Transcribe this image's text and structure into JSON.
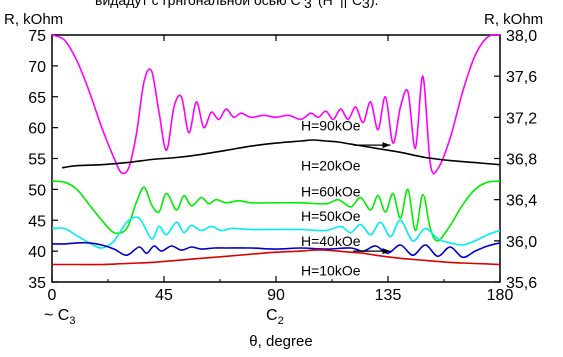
{
  "caption_fragment": "видадут с грнгональной осью С",
  "caption_subscript": "3",
  "caption_tail": "(H",
  "caption_tail2": "||",
  "caption_tail3": "C",
  "caption_tail3_sub": "3",
  "caption_tail4": ").",
  "chart_data": {
    "type": "line",
    "title": "",
    "xlabel": "θ, degree",
    "ylabel_left": "R, kOhm",
    "ylabel_right": "R, kOhm",
    "xlim": [
      0,
      180
    ],
    "ylim_left": [
      35,
      75
    ],
    "ylim_right": [
      35.6,
      38.0
    ],
    "x_ticks": [
      0,
      45,
      90,
      135,
      180
    ],
    "x_tick_labels": [
      "0",
      "45",
      "90",
      "135",
      "180"
    ],
    "y_ticks_left": [
      35,
      40,
      45,
      50,
      55,
      60,
      65,
      70,
      75
    ],
    "y_ticks_right": [
      35.6,
      36.0,
      36.4,
      36.8,
      37.2,
      37.6,
      38.0
    ],
    "y_tick_labels_right": [
      "35,6",
      "36,0",
      "36,4",
      "36,8",
      "37,2",
      "37,6",
      "38,0"
    ],
    "x_annotations": [
      {
        "x": 0,
        "text": "~ C",
        "sub": "3"
      },
      {
        "x": 90,
        "text": "C",
        "sub": "2"
      }
    ],
    "series": [
      {
        "name": "H=90kOe",
        "axis": "right",
        "color": "#ff00ff",
        "x": [
          0,
          5,
          10,
          15,
          20,
          25,
          28,
          31,
          34,
          37,
          40,
          43,
          46,
          49,
          52,
          55,
          58,
          61,
          64,
          67,
          70,
          73,
          76,
          80,
          85,
          90,
          95,
          100,
          104,
          107,
          110,
          113,
          116,
          119,
          122,
          125,
          128,
          131,
          134,
          137,
          140,
          143,
          146,
          149,
          152,
          155,
          160,
          165,
          170,
          175,
          180
        ],
        "y": [
          38.0,
          37.95,
          37.75,
          37.45,
          37.1,
          36.8,
          36.66,
          36.72,
          37.05,
          37.55,
          37.65,
          37.25,
          36.88,
          37.3,
          37.4,
          37.05,
          37.35,
          37.1,
          37.25,
          37.18,
          37.28,
          37.2,
          37.24,
          37.2,
          37.22,
          37.2,
          37.22,
          37.18,
          37.24,
          37.2,
          37.26,
          37.18,
          37.28,
          37.18,
          37.3,
          37.15,
          37.35,
          37.08,
          37.4,
          36.95,
          37.3,
          37.45,
          36.9,
          37.6,
          36.75,
          36.7,
          37.0,
          37.45,
          37.8,
          37.98,
          38.0
        ]
      },
      {
        "name": "H=20kOe",
        "axis": "right",
        "color": "#000000",
        "x": [
          4,
          10,
          20,
          30,
          40,
          50,
          60,
          70,
          80,
          90,
          100,
          105,
          110,
          115,
          120,
          130,
          140,
          150,
          160,
          170,
          180
        ],
        "y": [
          36.71,
          36.73,
          36.74,
          36.76,
          36.79,
          36.81,
          36.84,
          36.88,
          36.92,
          36.95,
          36.97,
          36.98,
          36.97,
          36.96,
          36.94,
          36.9,
          36.86,
          36.81,
          36.78,
          36.76,
          36.74
        ]
      },
      {
        "name": "H=60kOe",
        "axis": "right",
        "color": "#00ee00",
        "x": [
          0,
          5,
          10,
          15,
          20,
          25,
          30,
          34,
          37,
          40,
          43,
          46,
          50,
          53,
          56,
          60,
          63,
          66,
          70,
          75,
          80,
          90,
          100,
          110,
          115,
          120,
          124,
          128,
          131,
          134,
          137,
          140,
          143,
          146,
          149,
          152,
          155,
          160,
          165,
          170,
          175,
          180
        ],
        "y": [
          36.58,
          36.57,
          36.5,
          36.35,
          36.2,
          36.08,
          36.12,
          36.38,
          36.52,
          36.35,
          36.28,
          36.46,
          36.3,
          36.44,
          36.34,
          36.42,
          36.36,
          36.4,
          36.37,
          36.39,
          36.37,
          36.37,
          36.37,
          36.36,
          36.4,
          36.33,
          36.42,
          36.3,
          36.44,
          36.28,
          36.46,
          36.22,
          36.5,
          36.1,
          36.45,
          36.12,
          36.0,
          36.15,
          36.35,
          36.5,
          36.57,
          36.58
        ]
      },
      {
        "name": "H=50kOe",
        "axis": "right",
        "color": "#00eeee",
        "x": [
          0,
          5,
          10,
          15,
          20,
          25,
          30,
          35,
          40,
          43,
          46,
          50,
          53,
          56,
          60,
          64,
          68,
          72,
          80,
          90,
          100,
          110,
          116,
          120,
          124,
          128,
          132,
          136,
          140,
          145,
          150,
          155,
          160,
          165,
          170,
          175,
          180
        ],
        "y": [
          36.12,
          36.12,
          36.05,
          35.98,
          35.93,
          36.0,
          36.18,
          36.22,
          36.02,
          36.14,
          36.06,
          36.18,
          36.08,
          36.15,
          36.1,
          36.14,
          36.1,
          36.12,
          36.11,
          36.11,
          36.11,
          36.1,
          36.14,
          36.08,
          36.16,
          36.06,
          36.18,
          36.04,
          36.2,
          36.0,
          36.12,
          36.02,
          35.98,
          35.96,
          36.0,
          36.06,
          36.1
        ]
      },
      {
        "name": "H=40kOe",
        "axis": "right",
        "color": "#0000cc",
        "x": [
          0,
          5,
          10,
          15,
          20,
          25,
          30,
          35,
          38,
          41,
          44,
          48,
          52,
          56,
          60,
          65,
          70,
          80,
          90,
          100,
          110,
          120,
          125,
          130,
          135,
          140,
          145,
          150,
          155,
          160,
          165,
          170,
          175,
          180
        ],
        "y": [
          35.97,
          35.97,
          35.98,
          35.98,
          35.96,
          35.92,
          35.86,
          35.94,
          35.88,
          35.95,
          35.9,
          35.95,
          35.91,
          35.94,
          35.92,
          35.93,
          35.93,
          35.93,
          35.92,
          35.93,
          35.92,
          35.93,
          35.9,
          35.95,
          35.88,
          35.96,
          35.86,
          35.96,
          35.85,
          35.94,
          35.84,
          35.9,
          35.95,
          35.98
        ]
      },
      {
        "name": "H=10kOe",
        "axis": "right",
        "color": "#dd0000",
        "x": [
          0,
          10,
          20,
          30,
          40,
          50,
          60,
          70,
          80,
          90,
          100,
          105,
          110,
          115,
          120,
          125,
          130,
          140,
          150,
          160,
          170,
          180
        ],
        "y": [
          35.77,
          35.77,
          35.77,
          35.78,
          35.79,
          35.81,
          35.83,
          35.85,
          35.87,
          35.89,
          35.9,
          35.91,
          35.91,
          35.9,
          35.89,
          35.88,
          35.86,
          35.83,
          35.81,
          35.79,
          35.78,
          35.77
        ]
      }
    ],
    "series_labels": [
      {
        "series": "H=90kOe",
        "text": "H=90kOe",
        "x": 112,
        "y": 37.12
      },
      {
        "series": "H=20kOe",
        "text": "H=20kOe",
        "x": 112,
        "y": 36.73
      },
      {
        "series": "H=60kOe",
        "text": "H=60kOe",
        "x": 112,
        "y": 36.48
      },
      {
        "series": "H=50kOe",
        "text": "H=50kOe",
        "x": 112,
        "y": 36.24
      },
      {
        "series": "H=40kOe",
        "text": "H=40kOe",
        "x": 112,
        "y": 36.0
      },
      {
        "series": "H=10kOe",
        "text": "H=10kOe",
        "x": 112,
        "y": 35.71
      }
    ],
    "arrows": [
      {
        "from_x": 121,
        "to_x": 136,
        "y": 36.93,
        "direction": "right"
      },
      {
        "from_x": 121,
        "to_x": 136,
        "y": 35.9,
        "direction": "right"
      }
    ]
  }
}
